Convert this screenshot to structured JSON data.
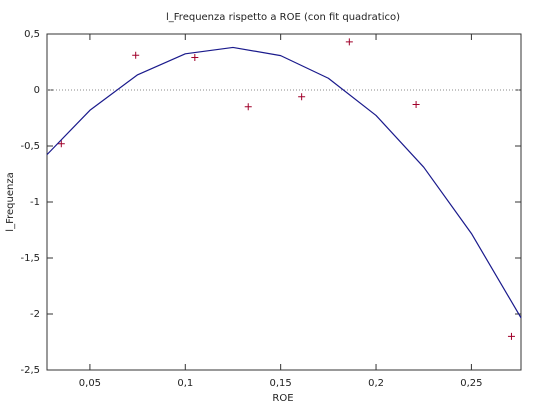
{
  "chart_data": {
    "type": "scatter",
    "title": "l_Frequenza rispetto a ROE (con fit quadratico)",
    "x_label": "ROE",
    "y_label": "l_Frequenza",
    "xlim": [
      0.0275,
      0.276
    ],
    "ylim": [
      -2.5,
      0.5
    ],
    "xticks": [
      {
        "value": 0.05,
        "label": "0,05"
      },
      {
        "value": 0.1,
        "label": "0,1"
      },
      {
        "value": 0.15,
        "label": "0,15"
      },
      {
        "value": 0.2,
        "label": "0,2"
      },
      {
        "value": 0.25,
        "label": "0,25"
      }
    ],
    "yticks": [
      {
        "value": 0.5,
        "label": "0,5"
      },
      0,
      {
        "value": -0.5,
        "label": "-0,5"
      },
      -1,
      {
        "value": -1.5,
        "label": "-1,5"
      },
      -2,
      {
        "value": -2.5,
        "label": "-2,5"
      }
    ],
    "zeroaxis": true,
    "series": [
      {
        "type": "scatter",
        "color": "#a0002a",
        "x": [
          0.035,
          0.074,
          0.105,
          0.133,
          0.161,
          0.186,
          0.221,
          0.271
        ],
        "values": [
          -0.48,
          0.31,
          0.29,
          -0.15,
          -0.06,
          0.43,
          -0.13,
          -2.2
        ]
      },
      {
        "type": "line",
        "color": "#1a1a8c",
        "x": [
          0.0275,
          0.05,
          0.075,
          0.1,
          0.125,
          0.15,
          0.175,
          0.2,
          0.225,
          0.25,
          0.276
        ],
        "values": [
          -0.577,
          -0.181,
          0.136,
          0.323,
          0.38,
          0.307,
          0.105,
          -0.227,
          -0.689,
          -1.281,
          -2.034
        ]
      }
    ]
  }
}
